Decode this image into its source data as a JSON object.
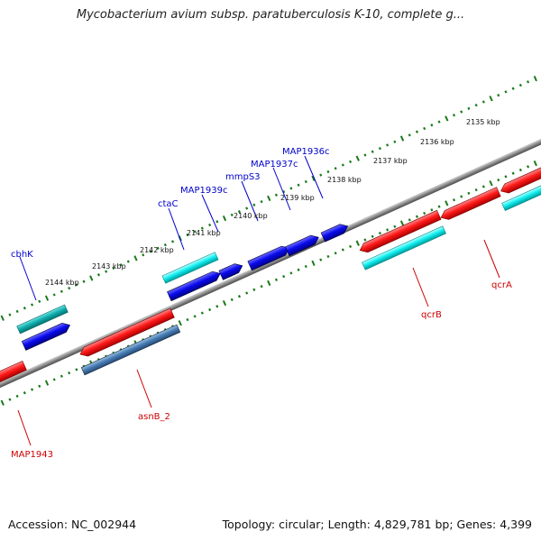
{
  "title": "Mycobacterium avium subsp. paratuberculosis K-10, complete g...",
  "footer": {
    "accession": "Accession: NC_002944",
    "summary": "Topology: circular; Length: 4,829,781 bp; Genes: 4,399"
  },
  "scale_labels": [
    "2135 kbp",
    "2136 kbp",
    "2137 kbp",
    "2138 kbp",
    "2139 kbp",
    "2140 kbp",
    "2141 kbp",
    "2142 kbp",
    "2143 kbp",
    "2144 kbp"
  ],
  "genes_upper": [
    "cbhK",
    "ctaC",
    "MAP1939c",
    "mmpS3",
    "MAP1937c",
    "MAP1936c"
  ],
  "genes_lower": [
    "MAP1943",
    "asnB_2",
    "qcrB",
    "qcrA"
  ],
  "colors": {
    "upper_label": "#0000cc",
    "lower_label": "#cc0000",
    "backbone": "#8a8a8a",
    "tick": "#1a7a1a"
  }
}
